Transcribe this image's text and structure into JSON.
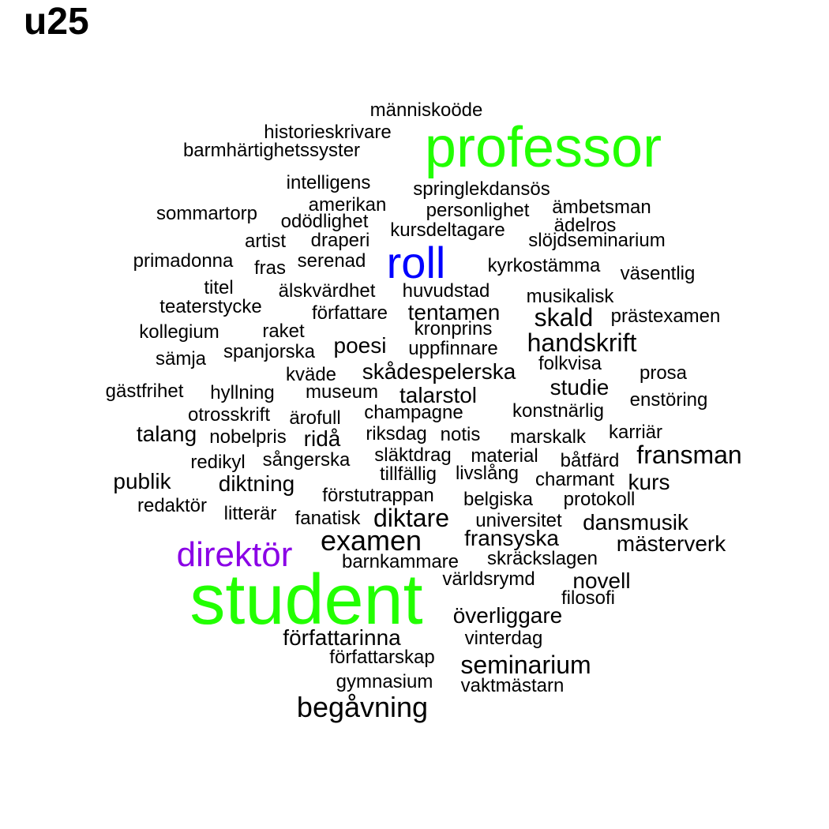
{
  "title": "u25",
  "colors": {
    "black": "#000000",
    "green": "#22ff00",
    "blue": "#0000ff",
    "purple": "#8a00e6"
  },
  "words": [
    {
      "text": "student",
      "color": "green"
    },
    {
      "text": "professor",
      "color": "green"
    },
    {
      "text": "roll",
      "color": "blue"
    },
    {
      "text": "direktör",
      "color": "purple"
    },
    {
      "text": "människoöde",
      "color": "black"
    },
    {
      "text": "historieskrivare",
      "color": "black"
    },
    {
      "text": "barmhärtighetssyster",
      "color": "black"
    },
    {
      "text": "intelligens",
      "color": "black"
    },
    {
      "text": "springlekdansös",
      "color": "black"
    },
    {
      "text": "amerikan",
      "color": "black"
    },
    {
      "text": "sommartorp",
      "color": "black"
    },
    {
      "text": "odödlighet",
      "color": "black"
    },
    {
      "text": "personlighet",
      "color": "black"
    },
    {
      "text": "ämbetsman",
      "color": "black"
    },
    {
      "text": "ädelros",
      "color": "black"
    },
    {
      "text": "kursdeltagare",
      "color": "black"
    },
    {
      "text": "artist",
      "color": "black"
    },
    {
      "text": "draperi",
      "color": "black"
    },
    {
      "text": "slöjdseminarium",
      "color": "black"
    },
    {
      "text": "primadonna",
      "color": "black"
    },
    {
      "text": "fras",
      "color": "black"
    },
    {
      "text": "serenad",
      "color": "black"
    },
    {
      "text": "kyrkostämma",
      "color": "black"
    },
    {
      "text": "väsentlig",
      "color": "black"
    },
    {
      "text": "titel",
      "color": "black"
    },
    {
      "text": "älskvärdhet",
      "color": "black"
    },
    {
      "text": "huvudstad",
      "color": "black"
    },
    {
      "text": "musikalisk",
      "color": "black"
    },
    {
      "text": "teaterstycke",
      "color": "black"
    },
    {
      "text": "författare",
      "color": "black"
    },
    {
      "text": "tentamen",
      "color": "black"
    },
    {
      "text": "skald",
      "color": "black"
    },
    {
      "text": "prästexamen",
      "color": "black"
    },
    {
      "text": "kollegium",
      "color": "black"
    },
    {
      "text": "raket",
      "color": "black"
    },
    {
      "text": "kronprins",
      "color": "black"
    },
    {
      "text": "poesi",
      "color": "black"
    },
    {
      "text": "handskrift",
      "color": "black"
    },
    {
      "text": "sämja",
      "color": "black"
    },
    {
      "text": "spanjorska",
      "color": "black"
    },
    {
      "text": "uppfinnare",
      "color": "black"
    },
    {
      "text": "folkvisa",
      "color": "black"
    },
    {
      "text": "kväde",
      "color": "black"
    },
    {
      "text": "skådespelerska",
      "color": "black"
    },
    {
      "text": "prosa",
      "color": "black"
    },
    {
      "text": "gästfrihet",
      "color": "black"
    },
    {
      "text": "hyllning",
      "color": "black"
    },
    {
      "text": "museum",
      "color": "black"
    },
    {
      "text": "talarstol",
      "color": "black"
    },
    {
      "text": "studie",
      "color": "black"
    },
    {
      "text": "enstöring",
      "color": "black"
    },
    {
      "text": "otrosskrift",
      "color": "black"
    },
    {
      "text": "ärofull",
      "color": "black"
    },
    {
      "text": "champagne",
      "color": "black"
    },
    {
      "text": "konstnärlig",
      "color": "black"
    },
    {
      "text": "talang",
      "color": "black"
    },
    {
      "text": "nobelpris",
      "color": "black"
    },
    {
      "text": "ridå",
      "color": "black"
    },
    {
      "text": "riksdag",
      "color": "black"
    },
    {
      "text": "notis",
      "color": "black"
    },
    {
      "text": "marskalk",
      "color": "black"
    },
    {
      "text": "karriär",
      "color": "black"
    },
    {
      "text": "redikyl",
      "color": "black"
    },
    {
      "text": "sångerska",
      "color": "black"
    },
    {
      "text": "släktdrag",
      "color": "black"
    },
    {
      "text": "material",
      "color": "black"
    },
    {
      "text": "båtfärd",
      "color": "black"
    },
    {
      "text": "fransman",
      "color": "black"
    },
    {
      "text": "publik",
      "color": "black"
    },
    {
      "text": "diktning",
      "color": "black"
    },
    {
      "text": "tillfällig",
      "color": "black"
    },
    {
      "text": "livslång",
      "color": "black"
    },
    {
      "text": "charmant",
      "color": "black"
    },
    {
      "text": "kurs",
      "color": "black"
    },
    {
      "text": "redaktör",
      "color": "black"
    },
    {
      "text": "förstutrappan",
      "color": "black"
    },
    {
      "text": "belgiska",
      "color": "black"
    },
    {
      "text": "protokoll",
      "color": "black"
    },
    {
      "text": "litterär",
      "color": "black"
    },
    {
      "text": "fanatisk",
      "color": "black"
    },
    {
      "text": "diktare",
      "color": "black"
    },
    {
      "text": "universitet",
      "color": "black"
    },
    {
      "text": "dansmusik",
      "color": "black"
    },
    {
      "text": "examen",
      "color": "black"
    },
    {
      "text": "fransyska",
      "color": "black"
    },
    {
      "text": "mästerverk",
      "color": "black"
    },
    {
      "text": "barnkammare",
      "color": "black"
    },
    {
      "text": "skräckslagen",
      "color": "black"
    },
    {
      "text": "världsrymd",
      "color": "black"
    },
    {
      "text": "novell",
      "color": "black"
    },
    {
      "text": "filosofi",
      "color": "black"
    },
    {
      "text": "överliggare",
      "color": "black"
    },
    {
      "text": "författarinna",
      "color": "black"
    },
    {
      "text": "vinterdag",
      "color": "black"
    },
    {
      "text": "författarskap",
      "color": "black"
    },
    {
      "text": "seminarium",
      "color": "black"
    },
    {
      "text": "gymnasium",
      "color": "black"
    },
    {
      "text": "vaktmästarn",
      "color": "black"
    },
    {
      "text": "begåvning",
      "color": "black"
    }
  ]
}
